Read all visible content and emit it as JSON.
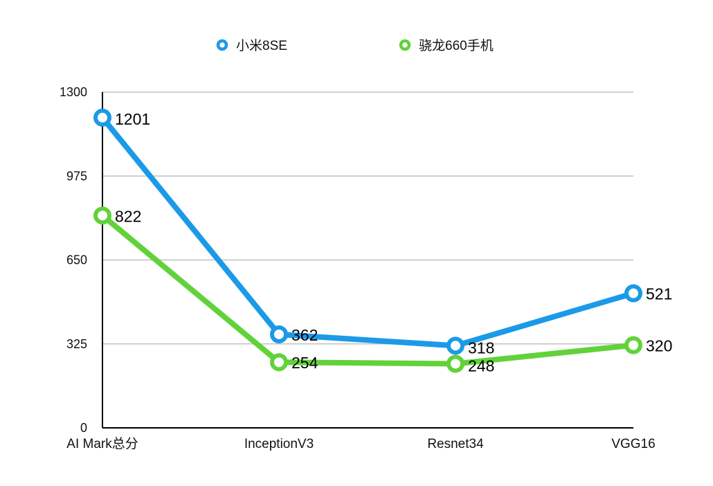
{
  "chart_data": {
    "type": "line",
    "categories": [
      "AI Mark总分",
      "InceptionV3",
      "Resnet34",
      "VGG16"
    ],
    "series": [
      {
        "name": "小米8SE",
        "values": [
          1201,
          362,
          318,
          521
        ],
        "color": "#1b9ae8"
      },
      {
        "name": "骁龙660手机",
        "values": [
          822,
          254,
          248,
          320
        ],
        "color": "#62d23b"
      }
    ],
    "yticks": [
      0,
      325,
      650,
      975,
      1300
    ],
    "ylim": [
      0,
      1300
    ],
    "grid": true,
    "legend_position": "top",
    "title": "",
    "xlabel": "",
    "ylabel": ""
  }
}
